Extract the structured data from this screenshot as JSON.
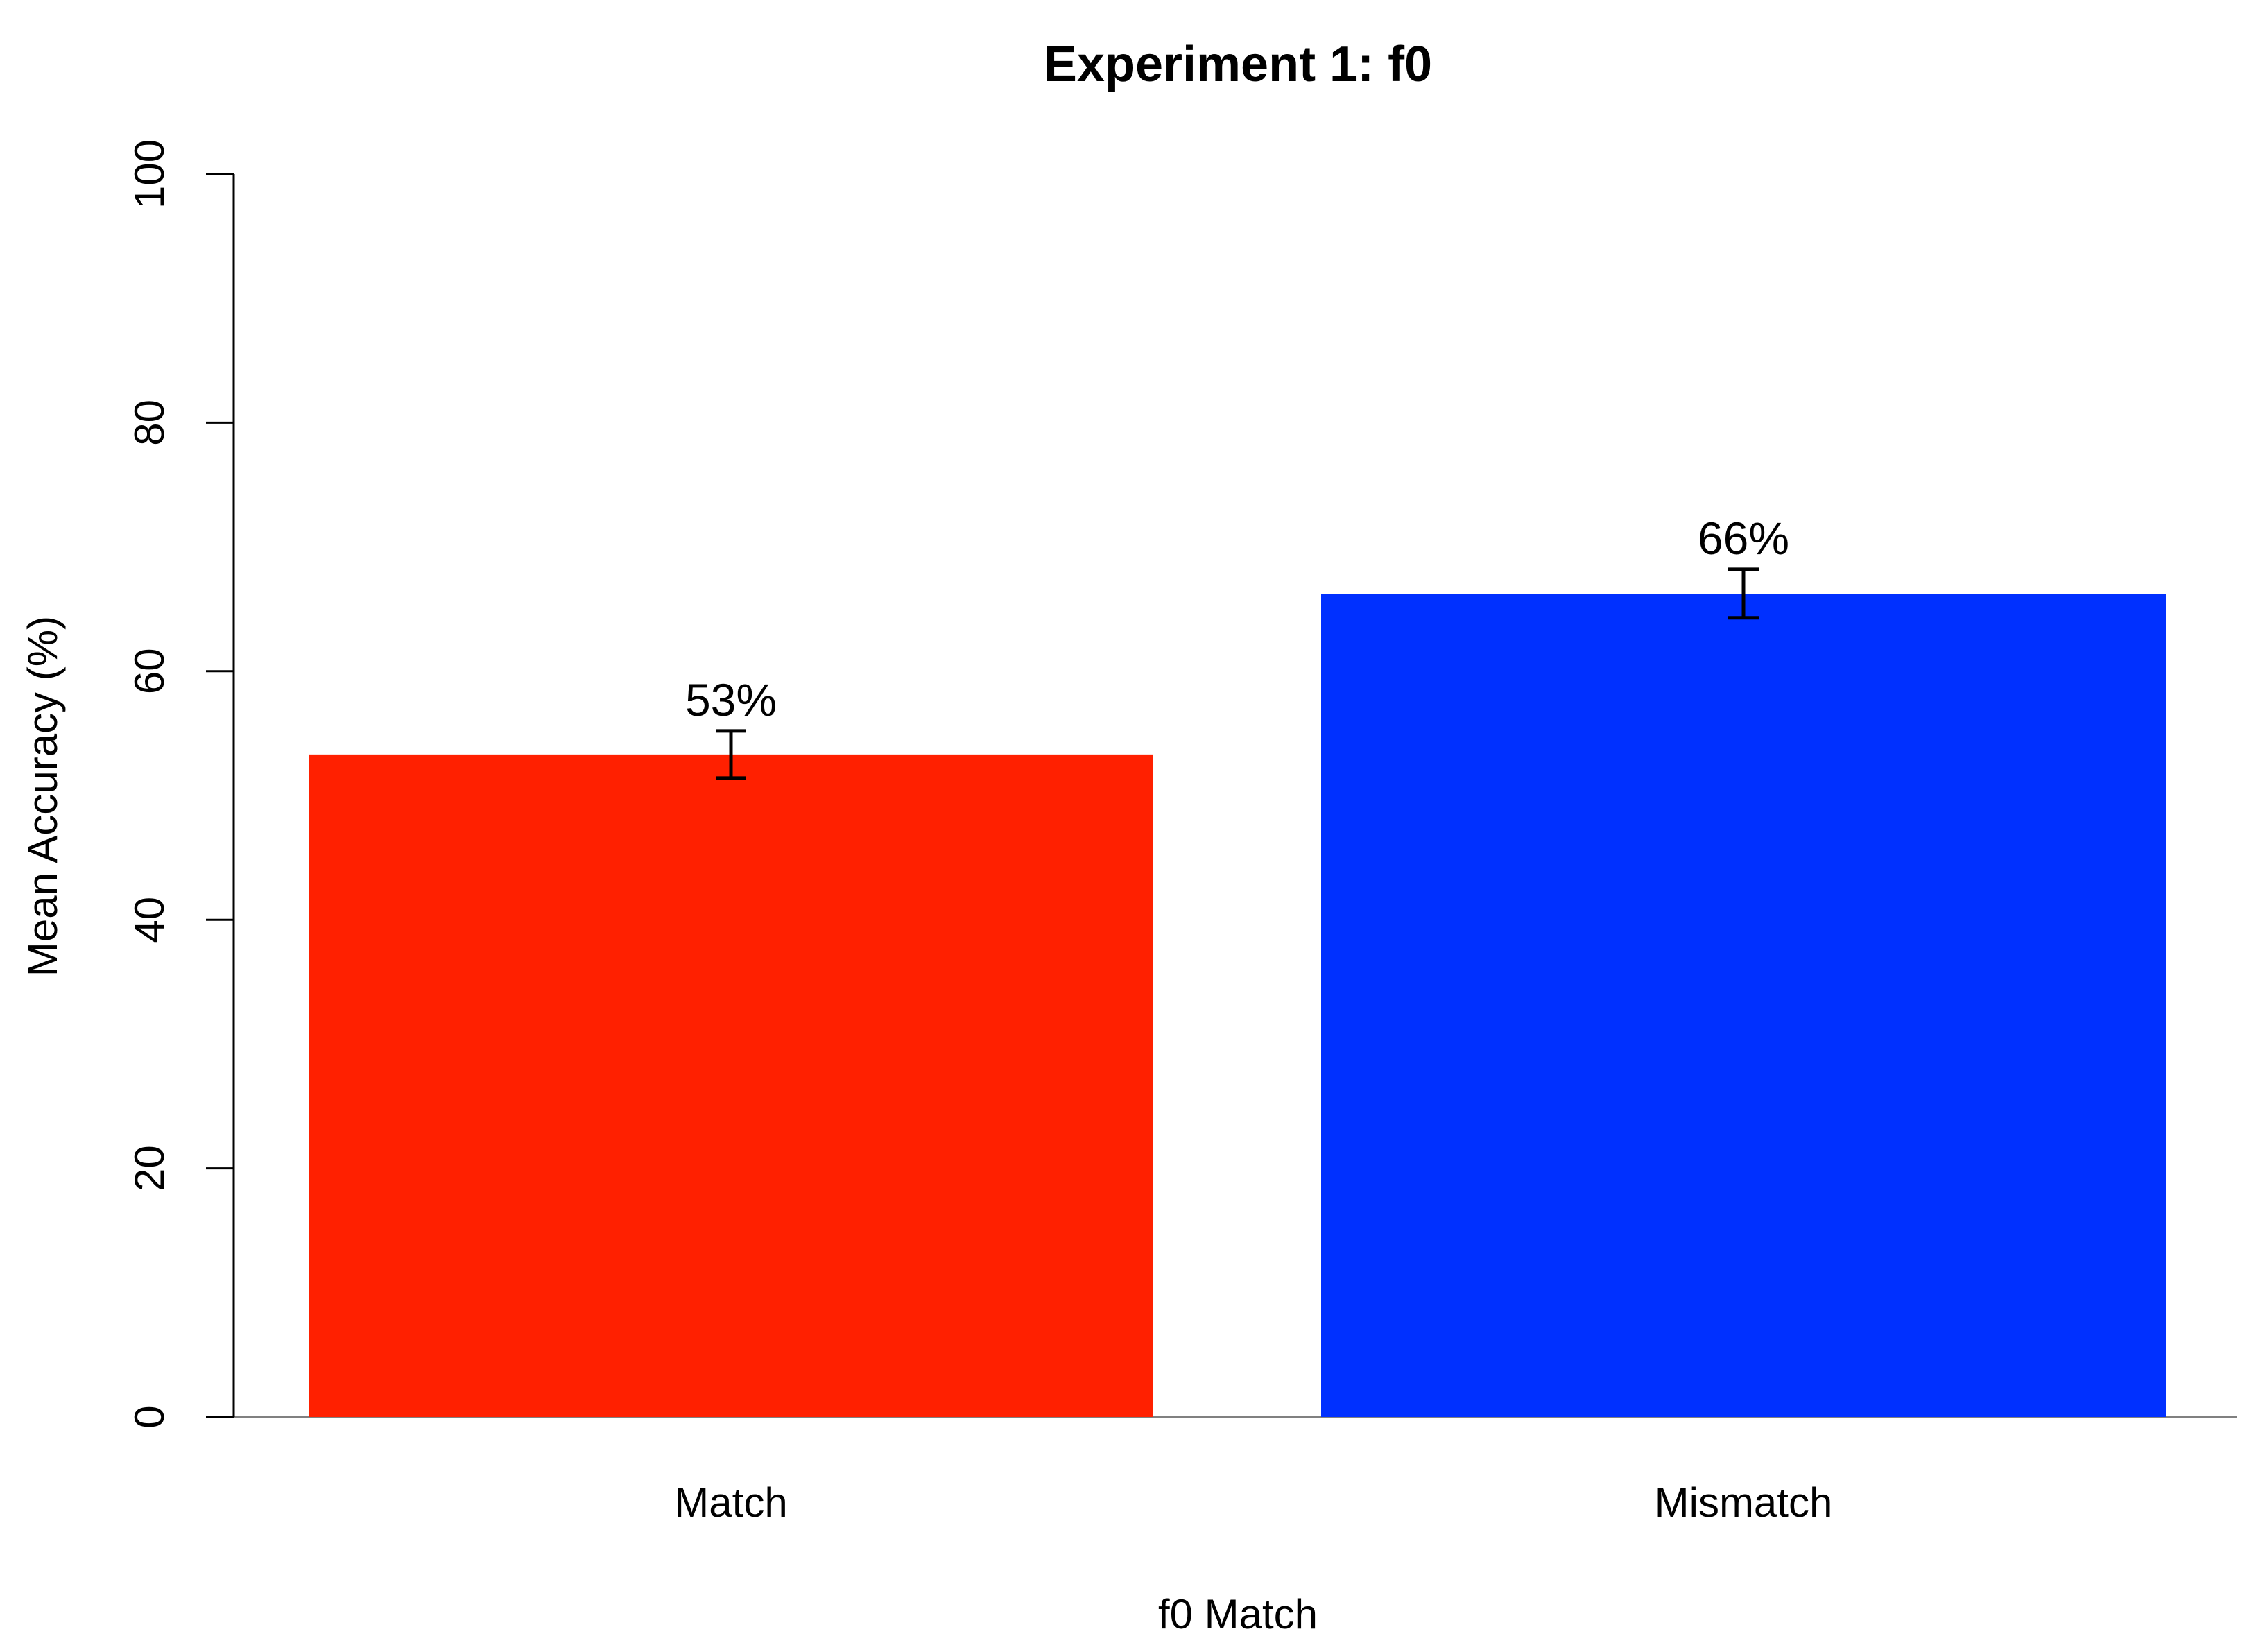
{
  "chart_data": {
    "type": "bar",
    "title": "Experiment 1: f0",
    "xlabel": "f0 Match",
    "ylabel": "Mean Accuracy (%)",
    "ylim": [
      0,
      100
    ],
    "yticks": [
      0,
      20,
      40,
      60,
      80,
      100
    ],
    "categories": [
      "Match",
      "Mismatch"
    ],
    "values": [
      53.3,
      66.2
    ],
    "value_labels": [
      "53%",
      "66%"
    ],
    "error_bars": [
      {
        "low": 51.4,
        "high": 55.2
      },
      {
        "low": 64.3,
        "high": 68.2
      }
    ],
    "colors": [
      "#ff2000",
      "#0030ff"
    ],
    "grid": false,
    "legend": "none"
  }
}
